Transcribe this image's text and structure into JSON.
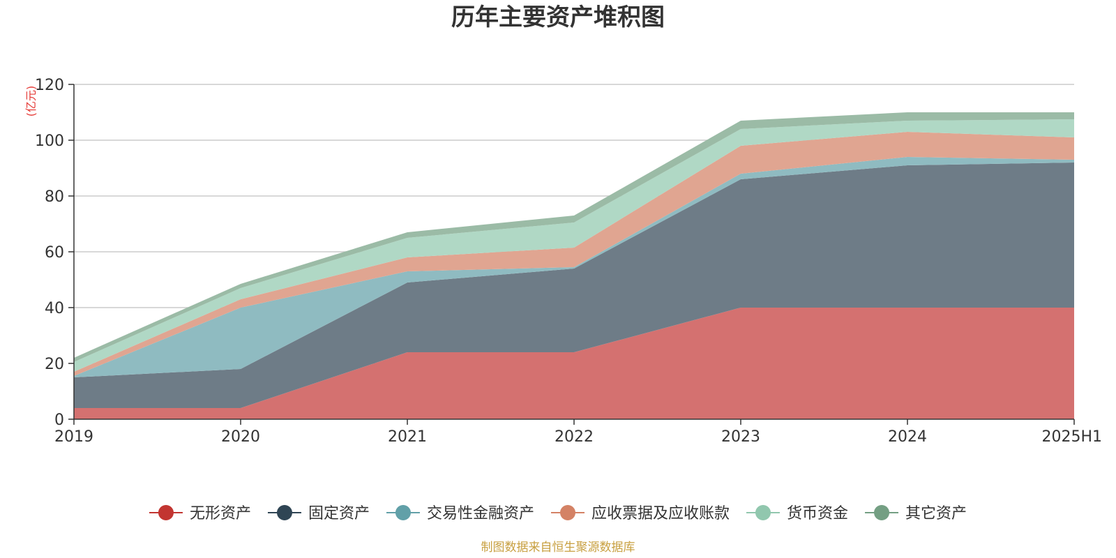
{
  "chart_data": {
    "type": "area",
    "stacked": true,
    "title": "历年主要资产堆积图",
    "unit": "(亿元)",
    "categories": [
      "2019",
      "2020",
      "2021",
      "2022",
      "2023",
      "2024",
      "2025H1"
    ],
    "ylim": [
      0,
      120
    ],
    "yticks": [
      0,
      20,
      40,
      60,
      80,
      100,
      120
    ],
    "grid": true,
    "legend_position": "bottom",
    "series": [
      {
        "name": "无形资产",
        "color": "#c23531",
        "area_color": "#d47170",
        "values": [
          4,
          4,
          24,
          24,
          40,
          40,
          40
        ]
      },
      {
        "name": "固定资产",
        "color": "#2f4554",
        "area_color": "#6e7c87",
        "values": [
          11,
          14,
          25,
          30,
          46,
          51,
          52
        ]
      },
      {
        "name": "交易性金融资产",
        "color": "#61a0a8",
        "area_color": "#8fbbc1",
        "values": [
          0.5,
          22,
          4,
          0.5,
          2,
          3,
          1
        ]
      },
      {
        "name": "应收票据及应收账款",
        "color": "#d48265",
        "area_color": "#e0a591",
        "values": [
          1.5,
          3,
          5,
          7,
          10,
          9,
          8
        ]
      },
      {
        "name": "货币资金",
        "color": "#91c7ae",
        "area_color": "#b0d8c5",
        "values": [
          3.5,
          4,
          7,
          9,
          6,
          4,
          6.5
        ]
      },
      {
        "name": "其它资产",
        "color": "#749f83",
        "area_color": "#9bbba6",
        "values": [
          1.5,
          1.5,
          2,
          2.5,
          3,
          3,
          2.5
        ]
      }
    ],
    "source": "制图数据来自恒生聚源数据库"
  }
}
